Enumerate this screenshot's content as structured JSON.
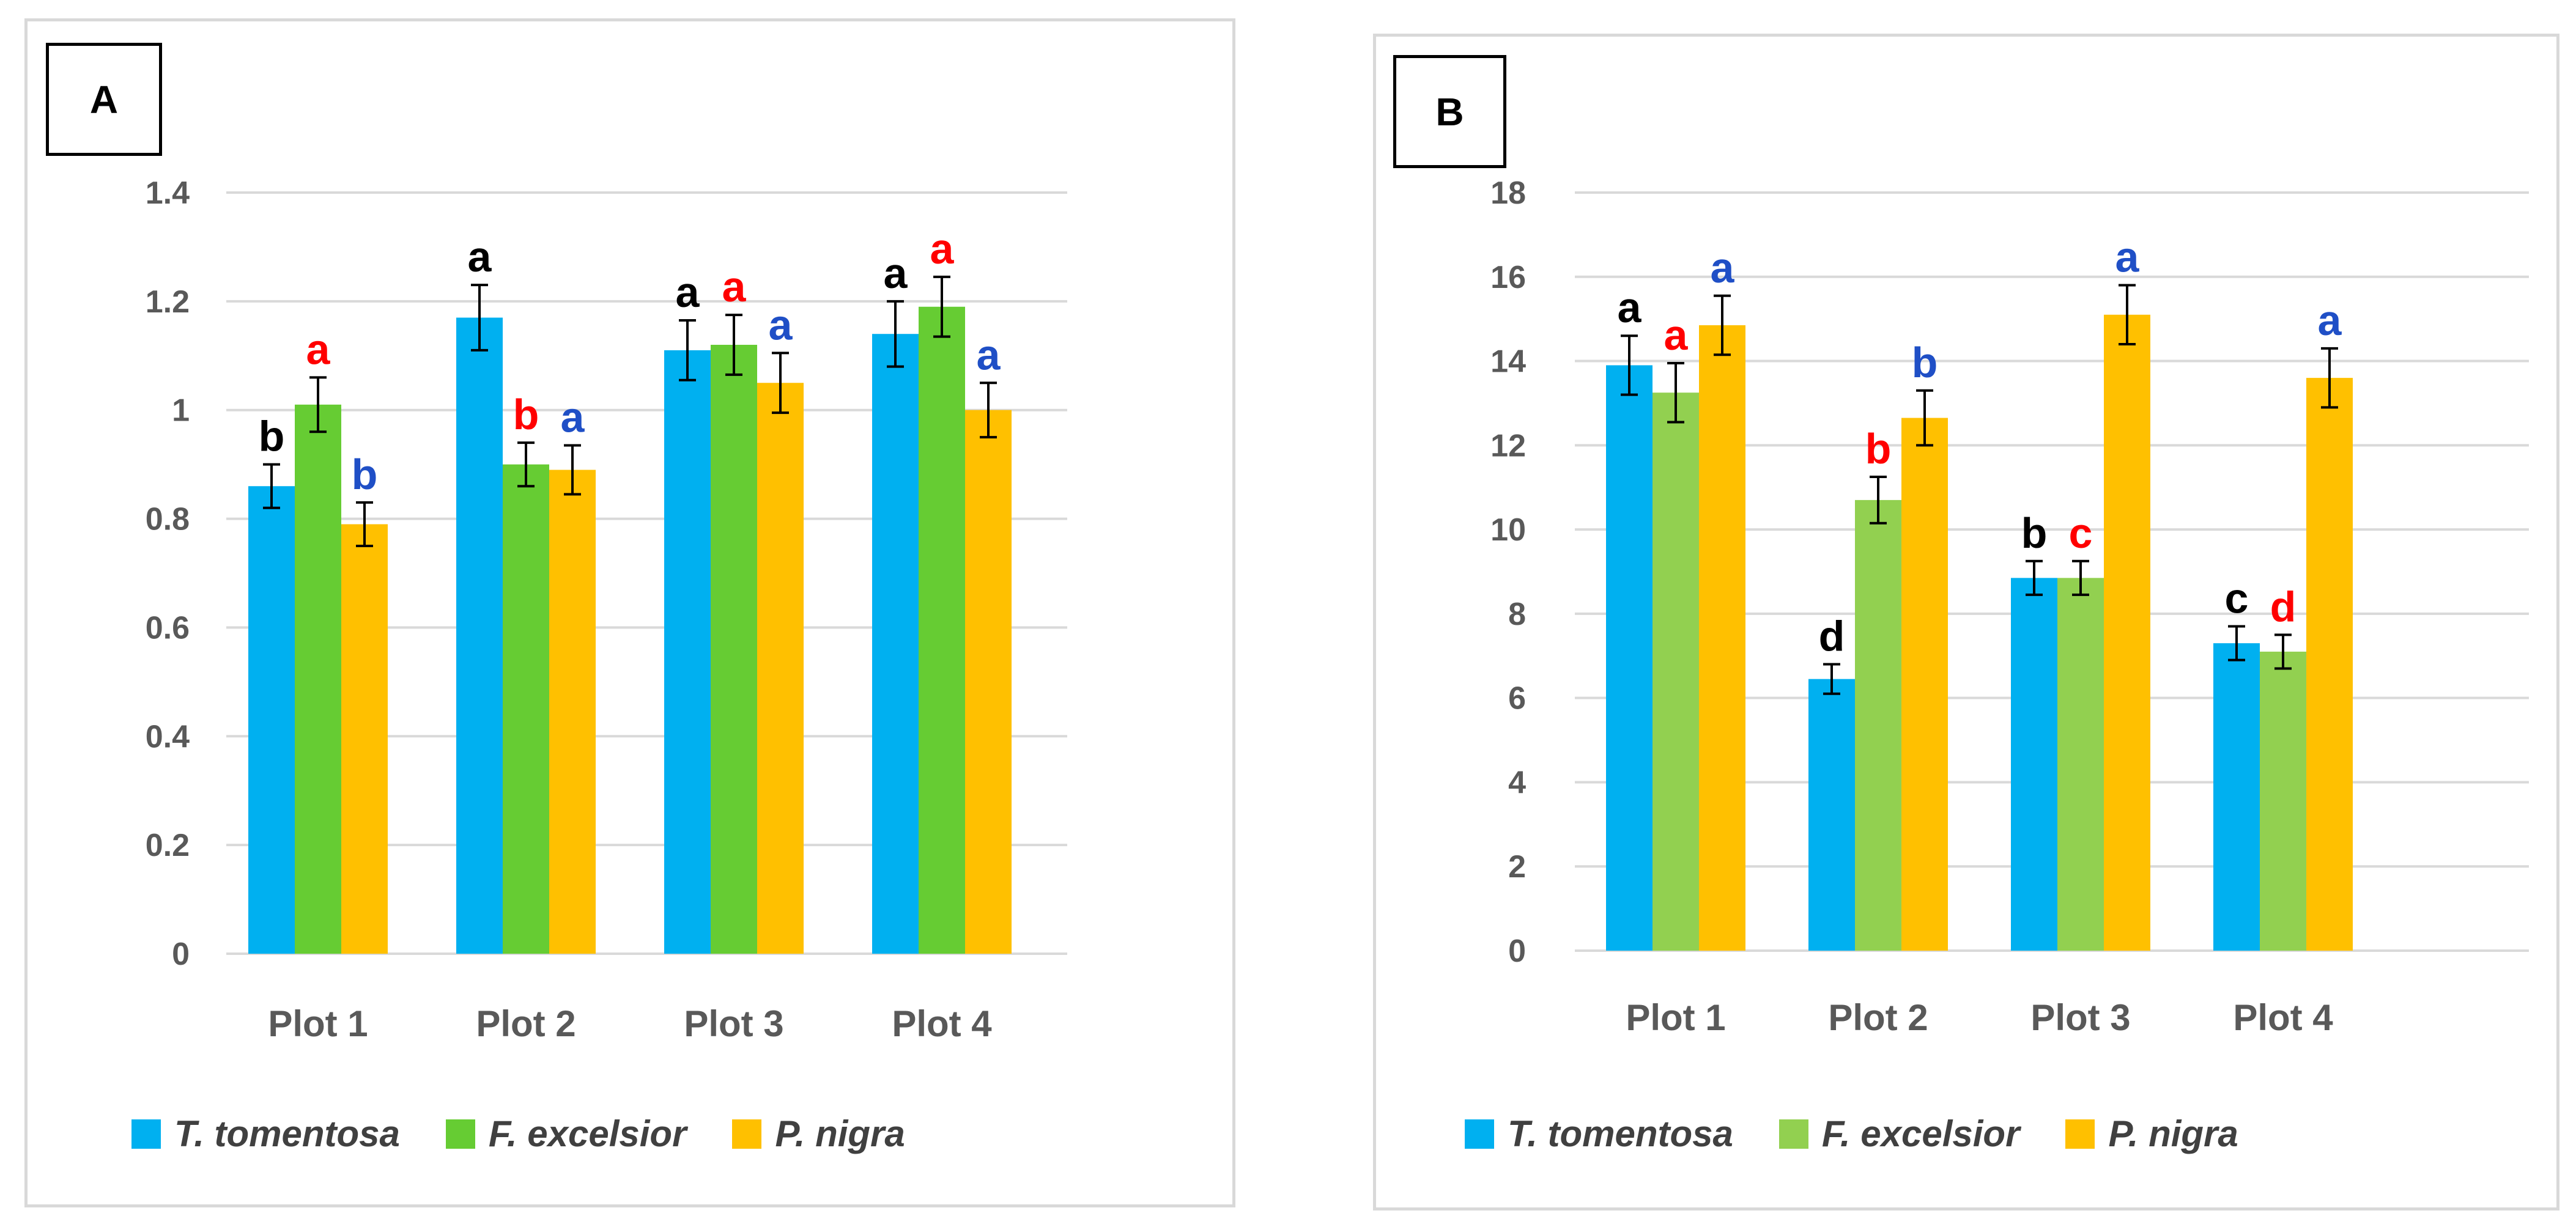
{
  "colors": {
    "t_tomentosa": "#00b0f0",
    "f_excelsior_a": "#66cc33",
    "f_excelsior_b": "#92d050",
    "p_nigra": "#ffc000",
    "grid": "#d9d9d9",
    "sig_black": "#000000",
    "sig_red": "#ff0000",
    "sig_blue": "#1f4fc6"
  },
  "chart_data": [
    {
      "type": "bar",
      "panel_label": "A",
      "categories": [
        "Plot 1",
        "Plot 2",
        "Plot 3",
        "Plot 4"
      ],
      "yticks": [
        "0",
        "0.2",
        "0.4",
        "0.6",
        "0.8",
        "1",
        "1.2",
        "1.4"
      ],
      "ylim": [
        0,
        1.4
      ],
      "grid": true,
      "legend_position": "bottom",
      "series": [
        {
          "name": "T. tomentosa",
          "values": [
            0.86,
            1.17,
            1.11,
            1.14
          ],
          "errors": [
            0.04,
            0.06,
            0.055,
            0.06
          ],
          "letters": [
            "b",
            "a",
            "a",
            "a"
          ],
          "letter_color": "sig_black",
          "color": "t_tomentosa"
        },
        {
          "name": "F. excelsior",
          "values": [
            1.01,
            0.9,
            1.12,
            1.19
          ],
          "errors": [
            0.05,
            0.04,
            0.055,
            0.055
          ],
          "letters": [
            "a",
            "b",
            "a",
            "a"
          ],
          "letter_color": "sig_red",
          "color": "f_excelsior_a"
        },
        {
          "name": "P. nigra",
          "values": [
            0.79,
            0.89,
            1.05,
            1.0
          ],
          "errors": [
            0.04,
            0.045,
            0.055,
            0.05
          ],
          "letters": [
            "b",
            "a",
            "a",
            "a"
          ],
          "letter_color": "sig_blue",
          "color": "p_nigra"
        }
      ]
    },
    {
      "type": "bar",
      "panel_label": "B",
      "categories": [
        "Plot 1",
        "Plot 2",
        "Plot 3",
        "Plot 4"
      ],
      "yticks": [
        "0",
        "2",
        "4",
        "6",
        "8",
        "10",
        "12",
        "14",
        "16",
        "18"
      ],
      "ylim": [
        0,
        18
      ],
      "grid": true,
      "legend_position": "bottom",
      "series": [
        {
          "name": "T. tomentosa",
          "values": [
            13.9,
            6.45,
            8.85,
            7.3
          ],
          "errors": [
            0.7,
            0.35,
            0.4,
            0.4
          ],
          "letters": [
            "a",
            "d",
            "b",
            "c"
          ],
          "letter_color": "sig_black",
          "color": "t_tomentosa"
        },
        {
          "name": "F. excelsior",
          "values": [
            13.25,
            10.7,
            8.85,
            7.1
          ],
          "errors": [
            0.7,
            0.55,
            0.4,
            0.4
          ],
          "letters": [
            "a",
            "b",
            "c",
            "d"
          ],
          "letter_color": "sig_red",
          "color": "f_excelsior_b"
        },
        {
          "name": "P. nigra",
          "values": [
            14.85,
            12.65,
            15.1,
            13.6
          ],
          "errors": [
            0.7,
            0.65,
            0.7,
            0.7
          ],
          "letters": [
            "a",
            "b",
            "a",
            "a"
          ],
          "letter_color": "sig_blue",
          "color": "p_nigra"
        }
      ]
    }
  ]
}
